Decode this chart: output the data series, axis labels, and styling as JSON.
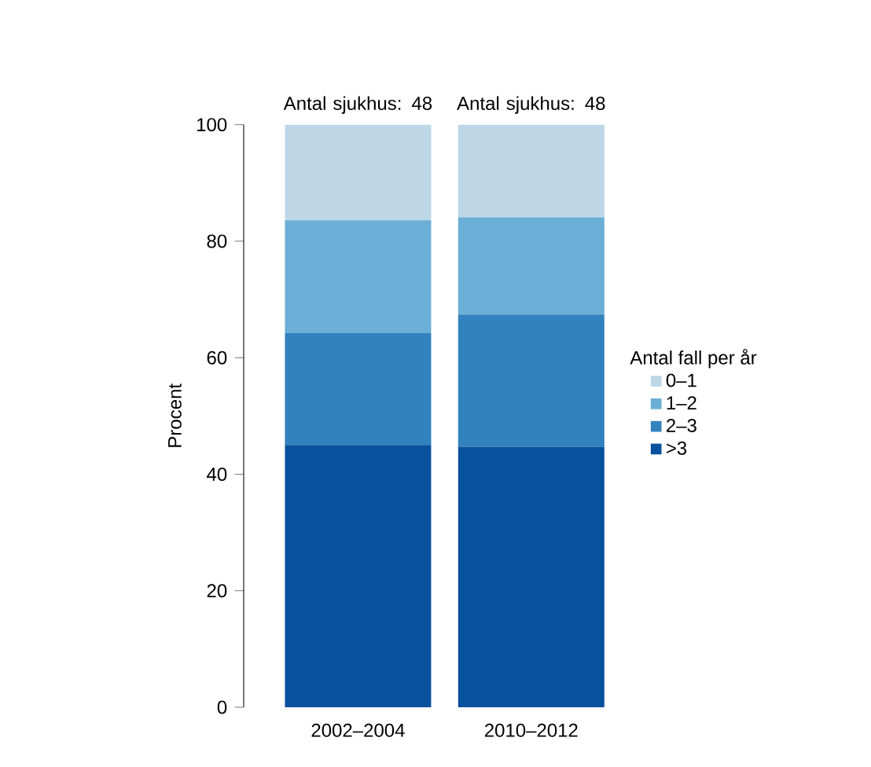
{
  "chart_data": {
    "type": "bar",
    "stacked": true,
    "ylabel": "Procent",
    "legend_title": "Antal fall per år",
    "categories": [
      "2002–2004",
      "2010–2012"
    ],
    "series": [
      {
        "name": ">3",
        "color": "#08519c",
        "values": [
          45.0,
          44.7
        ]
      },
      {
        "name": "2–3",
        "color": "#3182bd",
        "values": [
          19.2,
          22.7
        ]
      },
      {
        "name": "1–2",
        "color": "#6baed6",
        "values": [
          19.4,
          16.7
        ]
      },
      {
        "name": "0–1",
        "color": "#bdd7e7",
        "values": [
          16.4,
          15.9
        ]
      }
    ],
    "ylim": [
      0,
      100
    ],
    "yticks": [
      0,
      20,
      40,
      60,
      80,
      100
    ],
    "grid": false,
    "legend": "right",
    "annotations": [
      {
        "text": "Antal sjukhus: 48",
        "x": "2002–2004",
        "y": 100
      },
      {
        "text": "Antal sjukhus: 48",
        "x": "2010–2012",
        "y": 100
      }
    ]
  }
}
